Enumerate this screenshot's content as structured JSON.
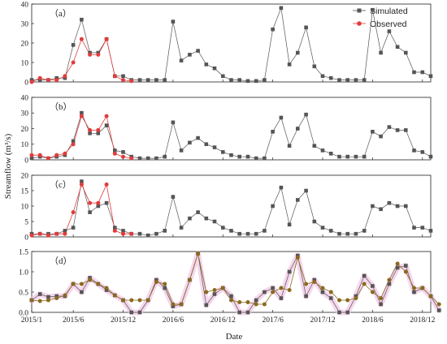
{
  "chart_data": {
    "type": "line",
    "ylabel": "Streamflow (m³/s)",
    "xlabel": "Date",
    "x_tick_labels": [
      "2015/1",
      "2015/6",
      "2015/12",
      "2016/6",
      "2016/12",
      "2017/6",
      "2017/12",
      "2018/6",
      "2018/12"
    ],
    "x_tick_positions": [
      0,
      5,
      11,
      17,
      23,
      29,
      35,
      41,
      47
    ],
    "legend": {
      "placement": "top-right",
      "sim_label": "Simulated",
      "obs_label": "Observed"
    },
    "colors": {
      "simulated": "#555555",
      "observed": "#e23b3b",
      "panel_d_observed": "#8a6a1e",
      "glow": "#f2c6e6"
    },
    "panels": [
      {
        "label": "（a）",
        "ylim": [
          0,
          40
        ],
        "yticks": [
          0,
          10,
          20,
          30,
          40
        ],
        "simulated": [
          1,
          1,
          1,
          2,
          2,
          19,
          32,
          15,
          15,
          22,
          3,
          3,
          1,
          1,
          1,
          1,
          1,
          31,
          11,
          14,
          16,
          9,
          7,
          3,
          1,
          1,
          0.5,
          0.5,
          1,
          27,
          38,
          9,
          15,
          28,
          8,
          3,
          2,
          1,
          1,
          1,
          1,
          37,
          15,
          26,
          18,
          15,
          5,
          5,
          3
        ],
        "observed": [
          0,
          2,
          1,
          1,
          3,
          10,
          22,
          14,
          14,
          22,
          3,
          1,
          0.5,
          null,
          null,
          null,
          null,
          null,
          null,
          null,
          null,
          null,
          null,
          null,
          null,
          null,
          null,
          null,
          null,
          null,
          null,
          null,
          null,
          null,
          null,
          null,
          null,
          null,
          null,
          null,
          null,
          null,
          null,
          null,
          null,
          null,
          null,
          null,
          null
        ]
      },
      {
        "label": "（b）",
        "ylim": [
          0,
          40
        ],
        "yticks": [
          0,
          10,
          20,
          30,
          40
        ],
        "simulated": [
          1,
          2,
          1,
          2,
          3,
          12,
          30,
          17,
          17,
          22,
          6,
          5,
          2,
          1,
          1,
          1,
          2,
          24,
          6,
          11,
          14,
          10,
          8,
          5,
          3,
          2,
          2,
          1,
          1,
          18,
          27,
          9,
          20,
          29,
          9,
          6,
          4,
          2,
          2,
          2,
          2,
          18,
          15,
          21,
          19,
          19,
          6,
          5,
          2
        ],
        "observed": [
          3,
          3,
          1,
          3,
          4,
          10,
          28,
          19,
          19,
          28,
          4,
          2,
          1,
          null,
          null,
          null,
          null,
          null,
          null,
          null,
          null,
          null,
          null,
          null,
          null,
          null,
          null,
          null,
          null,
          null,
          null,
          null,
          null,
          null,
          null,
          null,
          null,
          null,
          null,
          null,
          null,
          null,
          null,
          null,
          null,
          null,
          null,
          null,
          null
        ]
      },
      {
        "label": "（c）",
        "ylim": [
          0,
          20
        ],
        "yticks": [
          0,
          5,
          10,
          15,
          20
        ],
        "simulated": [
          1,
          1,
          1,
          1,
          2,
          3,
          18,
          8,
          10,
          11,
          3,
          2,
          1,
          1,
          0.5,
          1,
          2,
          13,
          3,
          6,
          8,
          6,
          5,
          3,
          2,
          1,
          1,
          1,
          2,
          10,
          16,
          4,
          12,
          15,
          5,
          3,
          2,
          1,
          1,
          1,
          2,
          10,
          9,
          11,
          10,
          10,
          3,
          3,
          2
        ],
        "observed": [
          0.5,
          1,
          0.5,
          1,
          1,
          8,
          17,
          11,
          11,
          17,
          2,
          1,
          1,
          null,
          null,
          null,
          null,
          null,
          null,
          null,
          null,
          null,
          null,
          null,
          null,
          null,
          null,
          null,
          null,
          null,
          null,
          null,
          null,
          null,
          null,
          null,
          null,
          null,
          null,
          null,
          null,
          null,
          null,
          null,
          null,
          null,
          null,
          null,
          null
        ]
      },
      {
        "label": "（d）",
        "ylim": [
          0,
          1.5
        ],
        "yticks": [
          0.0,
          0.5,
          1.0,
          1.5
        ],
        "ytick_labels": [
          "0.0",
          "0.5",
          "1.0",
          "1.5"
        ],
        "simulated": [
          0.3,
          0.45,
          0.38,
          0.4,
          0.4,
          0.7,
          0.5,
          0.85,
          0.7,
          0.55,
          0.42,
          0.3,
          0.0,
          0.0,
          0.3,
          0.8,
          0.6,
          0.15,
          0.2,
          0.8,
          1.45,
          0.18,
          0.45,
          0.6,
          0.4,
          0.0,
          0.0,
          0.3,
          0.5,
          0.6,
          0.35,
          1.0,
          1.4,
          0.4,
          0.8,
          0.5,
          0.35,
          0.0,
          0.0,
          0.4,
          0.9,
          0.65,
          0.2,
          0.7,
          1.1,
          1.15,
          0.5,
          0.6,
          0.4,
          0.05
        ],
        "observed": [
          0.3,
          0.28,
          0.3,
          0.35,
          0.42,
          0.7,
          0.7,
          0.8,
          0.7,
          0.6,
          0.42,
          0.3,
          0.3,
          0.3,
          0.3,
          0.75,
          0.7,
          0.2,
          0.2,
          0.8,
          1.45,
          0.5,
          0.55,
          0.6,
          0.3,
          0.25,
          0.25,
          0.2,
          0.2,
          0.5,
          0.6,
          0.55,
          1.35,
          0.7,
          0.75,
          0.6,
          0.5,
          0.3,
          0.3,
          0.35,
          0.7,
          0.5,
          0.35,
          0.8,
          1.2,
          1.0,
          0.6,
          0.6,
          0.4,
          0.2
        ]
      }
    ]
  }
}
